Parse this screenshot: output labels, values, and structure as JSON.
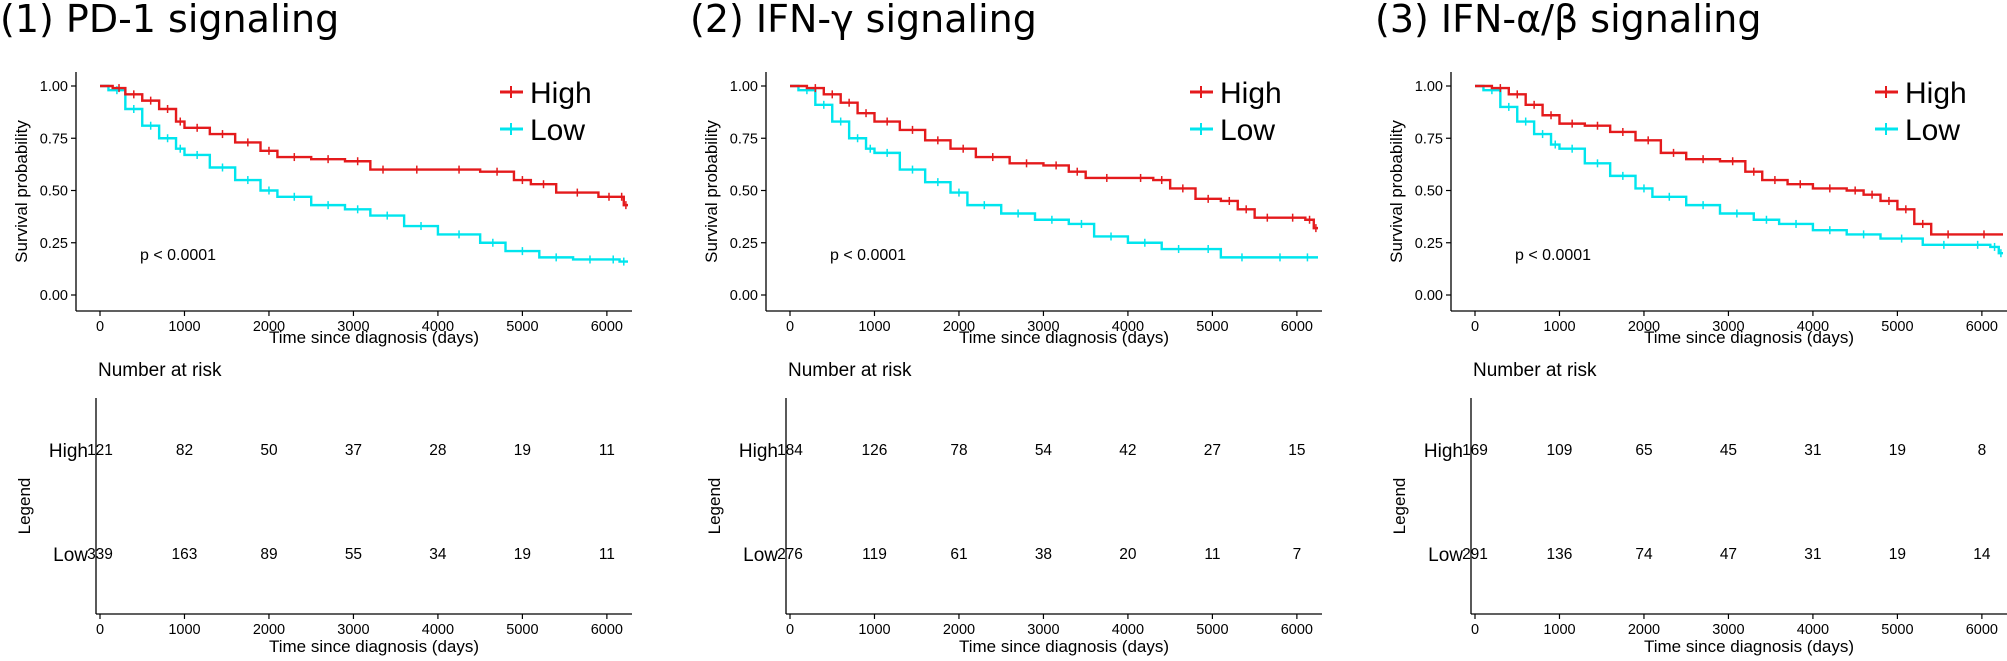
{
  "colors": {
    "high": "#e41a1c",
    "low": "#00e5ee",
    "axis": "#000000"
  },
  "chart_data": [
    {
      "type": "line",
      "title": "(1) PD-1 signaling",
      "xlabel": "Time since diagnosis (days)",
      "ylabel": "Survival probability",
      "xlim": [
        0,
        6250
      ],
      "ylim": [
        0,
        1
      ],
      "xticks": [
        "0",
        "1000",
        "2000",
        "3000",
        "4000",
        "5000",
        "6000"
      ],
      "yticks": [
        "0.00",
        "0.25",
        "0.50",
        "0.75",
        "1.00"
      ],
      "legend": [
        {
          "name": "High",
          "color": "high"
        },
        {
          "name": "Low",
          "color": "low"
        }
      ],
      "p_value": "p < 0.0001",
      "series": [
        {
          "name": "High",
          "color": "high",
          "points": [
            [
              0,
              1.0
            ],
            [
              150,
              0.99
            ],
            [
              300,
              0.96
            ],
            [
              500,
              0.93
            ],
            [
              700,
              0.89
            ],
            [
              900,
              0.83
            ],
            [
              1000,
              0.8
            ],
            [
              1300,
              0.77
            ],
            [
              1600,
              0.73
            ],
            [
              1900,
              0.69
            ],
            [
              2100,
              0.66
            ],
            [
              2500,
              0.65
            ],
            [
              2900,
              0.64
            ],
            [
              3200,
              0.6
            ],
            [
              3500,
              0.6
            ],
            [
              4000,
              0.6
            ],
            [
              4500,
              0.59
            ],
            [
              4900,
              0.55
            ],
            [
              5100,
              0.53
            ],
            [
              5400,
              0.49
            ],
            [
              5900,
              0.47
            ],
            [
              6150,
              0.47
            ],
            [
              6200,
              0.43
            ],
            [
              6250,
              0.43
            ]
          ]
        },
        {
          "name": "Low",
          "color": "low",
          "points": [
            [
              0,
              1.0
            ],
            [
              100,
              0.98
            ],
            [
              300,
              0.89
            ],
            [
              500,
              0.81
            ],
            [
              700,
              0.75
            ],
            [
              900,
              0.7
            ],
            [
              1000,
              0.67
            ],
            [
              1300,
              0.61
            ],
            [
              1600,
              0.55
            ],
            [
              1900,
              0.5
            ],
            [
              2100,
              0.47
            ],
            [
              2500,
              0.43
            ],
            [
              2900,
              0.41
            ],
            [
              3200,
              0.38
            ],
            [
              3600,
              0.33
            ],
            [
              4000,
              0.29
            ],
            [
              4500,
              0.25
            ],
            [
              4800,
              0.21
            ],
            [
              5200,
              0.18
            ],
            [
              5600,
              0.17
            ],
            [
              6000,
              0.17
            ],
            [
              6150,
              0.16
            ],
            [
              6250,
              0.16
            ]
          ]
        }
      ],
      "risk_table": {
        "title": "Number at risk",
        "ylabel": "Legend",
        "xlabel": "Time since diagnosis (days)",
        "xticks": [
          "0",
          "1000",
          "2000",
          "3000",
          "4000",
          "5000",
          "6000"
        ],
        "rows": [
          {
            "label": "High",
            "color": "high",
            "values": [
              "121",
              "82",
              "50",
              "37",
              "28",
              "19",
              "11"
            ]
          },
          {
            "label": "Low",
            "color": "low",
            "values": [
              "339",
              "163",
              "89",
              "55",
              "34",
              "19",
              "11"
            ]
          }
        ]
      }
    },
    {
      "type": "line",
      "title": "(2) IFN-γ signaling",
      "xlabel": "Time since diagnosis (days)",
      "ylabel": "Survival probability",
      "xlim": [
        0,
        6250
      ],
      "ylim": [
        0,
        1
      ],
      "xticks": [
        "0",
        "1000",
        "2000",
        "3000",
        "4000",
        "5000",
        "6000"
      ],
      "yticks": [
        "0.00",
        "0.25",
        "0.50",
        "0.75",
        "1.00"
      ],
      "legend": [
        {
          "name": "High",
          "color": "high"
        },
        {
          "name": "Low",
          "color": "low"
        }
      ],
      "p_value": "p < 0.0001",
      "series": [
        {
          "name": "High",
          "color": "high",
          "points": [
            [
              0,
              1.0
            ],
            [
              200,
              0.99
            ],
            [
              400,
              0.96
            ],
            [
              600,
              0.92
            ],
            [
              800,
              0.87
            ],
            [
              1000,
              0.83
            ],
            [
              1300,
              0.79
            ],
            [
              1600,
              0.74
            ],
            [
              1900,
              0.7
            ],
            [
              2200,
              0.66
            ],
            [
              2600,
              0.63
            ],
            [
              3000,
              0.62
            ],
            [
              3300,
              0.59
            ],
            [
              3500,
              0.56
            ],
            [
              4000,
              0.56
            ],
            [
              4300,
              0.55
            ],
            [
              4500,
              0.51
            ],
            [
              4800,
              0.46
            ],
            [
              5100,
              0.45
            ],
            [
              5300,
              0.41
            ],
            [
              5500,
              0.37
            ],
            [
              5800,
              0.37
            ],
            [
              6100,
              0.36
            ],
            [
              6200,
              0.32
            ],
            [
              6250,
              0.32
            ]
          ]
        },
        {
          "name": "Low",
          "color": "low",
          "points": [
            [
              0,
              1.0
            ],
            [
              100,
              0.98
            ],
            [
              300,
              0.91
            ],
            [
              500,
              0.83
            ],
            [
              700,
              0.75
            ],
            [
              900,
              0.7
            ],
            [
              1000,
              0.68
            ],
            [
              1300,
              0.6
            ],
            [
              1600,
              0.54
            ],
            [
              1900,
              0.49
            ],
            [
              2100,
              0.43
            ],
            [
              2500,
              0.39
            ],
            [
              2900,
              0.36
            ],
            [
              3300,
              0.34
            ],
            [
              3600,
              0.28
            ],
            [
              4000,
              0.25
            ],
            [
              4400,
              0.22
            ],
            [
              4800,
              0.22
            ],
            [
              5100,
              0.18
            ],
            [
              5600,
              0.18
            ],
            [
              6000,
              0.18
            ],
            [
              6250,
              0.18
            ]
          ]
        }
      ],
      "risk_table": {
        "title": "Number at risk",
        "ylabel": "Legend",
        "xlabel": "Time since diagnosis (days)",
        "xticks": [
          "0",
          "1000",
          "2000",
          "3000",
          "4000",
          "5000",
          "6000"
        ],
        "rows": [
          {
            "label": "High",
            "color": "high",
            "values": [
              "184",
              "126",
              "78",
              "54",
              "42",
              "27",
              "15"
            ]
          },
          {
            "label": "Low",
            "color": "low",
            "values": [
              "276",
              "119",
              "61",
              "38",
              "20",
              "11",
              "7"
            ]
          }
        ]
      }
    },
    {
      "type": "line",
      "title": "(3) IFN-α/β signaling",
      "xlabel": "Time since diagnosis (days)",
      "ylabel": "Survival probability",
      "xlim": [
        0,
        6250
      ],
      "ylim": [
        0,
        1
      ],
      "xticks": [
        "0",
        "1000",
        "2000",
        "3000",
        "4000",
        "5000",
        "6000"
      ],
      "yticks": [
        "0.00",
        "0.25",
        "0.50",
        "0.75",
        "1.00"
      ],
      "legend": [
        {
          "name": "High",
          "color": "high"
        },
        {
          "name": "Low",
          "color": "low"
        }
      ],
      "p_value": "p < 0.0001",
      "series": [
        {
          "name": "High",
          "color": "high",
          "points": [
            [
              0,
              1.0
            ],
            [
              200,
              0.99
            ],
            [
              400,
              0.96
            ],
            [
              600,
              0.91
            ],
            [
              800,
              0.86
            ],
            [
              1000,
              0.82
            ],
            [
              1300,
              0.81
            ],
            [
              1600,
              0.78
            ],
            [
              1900,
              0.74
            ],
            [
              2200,
              0.68
            ],
            [
              2500,
              0.65
            ],
            [
              2900,
              0.64
            ],
            [
              3200,
              0.59
            ],
            [
              3400,
              0.55
            ],
            [
              3700,
              0.53
            ],
            [
              4000,
              0.51
            ],
            [
              4400,
              0.5
            ],
            [
              4600,
              0.48
            ],
            [
              4800,
              0.45
            ],
            [
              5000,
              0.41
            ],
            [
              5200,
              0.34
            ],
            [
              5400,
              0.29
            ],
            [
              5800,
              0.29
            ],
            [
              6250,
              0.29
            ]
          ]
        },
        {
          "name": "Low",
          "color": "low",
          "points": [
            [
              0,
              1.0
            ],
            [
              100,
              0.98
            ],
            [
              300,
              0.9
            ],
            [
              500,
              0.83
            ],
            [
              700,
              0.77
            ],
            [
              900,
              0.72
            ],
            [
              1000,
              0.7
            ],
            [
              1300,
              0.63
            ],
            [
              1600,
              0.57
            ],
            [
              1900,
              0.51
            ],
            [
              2100,
              0.47
            ],
            [
              2500,
              0.43
            ],
            [
              2900,
              0.39
            ],
            [
              3300,
              0.36
            ],
            [
              3600,
              0.34
            ],
            [
              4000,
              0.31
            ],
            [
              4400,
              0.29
            ],
            [
              4800,
              0.27
            ],
            [
              5300,
              0.24
            ],
            [
              5800,
              0.24
            ],
            [
              6100,
              0.23
            ],
            [
              6200,
              0.2
            ],
            [
              6250,
              0.2
            ]
          ]
        }
      ],
      "risk_table": {
        "title": "Number at risk",
        "ylabel": "Legend",
        "xlabel": "Time since diagnosis (days)",
        "xticks": [
          "0",
          "1000",
          "2000",
          "3000",
          "4000",
          "5000",
          "6000"
        ],
        "rows": [
          {
            "label": "High",
            "color": "high",
            "values": [
              "169",
              "109",
              "65",
              "45",
              "31",
              "19",
              "8"
            ]
          },
          {
            "label": "Low",
            "color": "low",
            "values": [
              "291",
              "136",
              "74",
              "47",
              "31",
              "19",
              "14"
            ]
          }
        ]
      }
    }
  ]
}
